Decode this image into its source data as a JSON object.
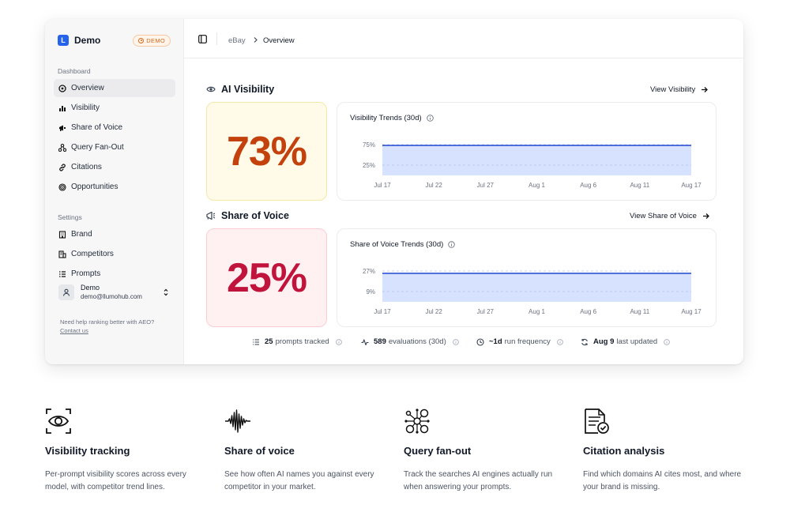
{
  "sidebar": {
    "brand": {
      "logo_letter": "L",
      "name": "Demo",
      "badge": "DEMO"
    },
    "sections": {
      "dashboard": "Dashboard",
      "settings": "Settings"
    },
    "items": [
      {
        "label": "Overview",
        "icon": "overview-icon"
      },
      {
        "label": "Visibility",
        "icon": "bar-chart-icon"
      },
      {
        "label": "Share of Voice",
        "icon": "megaphone-icon"
      },
      {
        "label": "Query Fan-Out",
        "icon": "network-icon"
      },
      {
        "label": "Citations",
        "icon": "link-icon"
      },
      {
        "label": "Opportunities",
        "icon": "target-icon"
      },
      {
        "label": "Brand",
        "icon": "building-icon"
      },
      {
        "label": "Competitors",
        "icon": "buildings-icon"
      },
      {
        "label": "Prompts",
        "icon": "list-icon"
      }
    ],
    "user": {
      "name": "Demo",
      "email": "demo@llumohub.com"
    },
    "help": {
      "text": "Need help ranking better with AEO?",
      "link": "Contact us"
    }
  },
  "header": {
    "breadcrumb_parent": "eBay",
    "breadcrumb_current": "Overview"
  },
  "ai_visibility": {
    "title": "AI Visibility",
    "link": "View Visibility",
    "value": "73%",
    "trend_title": "Visibility Trends (30d)"
  },
  "share_of_voice": {
    "title": "Share of Voice",
    "link": "View Share of Voice",
    "value": "25%",
    "trend_title": "Share of Voice Trends (30d)"
  },
  "chart_data": [
    {
      "type": "area",
      "title": "Visibility Trends (30d)",
      "x": [
        "Jul 17",
        "Jul 22",
        "Jul 27",
        "Aug 1",
        "Aug 6",
        "Aug 11",
        "Aug 17"
      ],
      "y_ticks": [
        "75%",
        "25%"
      ],
      "series": [
        {
          "values": [
            73,
            73,
            73,
            73,
            73,
            73,
            73
          ]
        }
      ],
      "ylim": [
        0,
        100
      ],
      "color": "#2f55d4",
      "fill": "#d6e2ff"
    },
    {
      "type": "area",
      "title": "Share of Voice Trends (30d)",
      "x": [
        "Jul 17",
        "Jul 22",
        "Jul 27",
        "Aug 1",
        "Aug 6",
        "Aug 11",
        "Aug 17"
      ],
      "y_ticks": [
        "27%",
        "9%"
      ],
      "series": [
        {
          "values": [
            25,
            25,
            25,
            25,
            25,
            25,
            25
          ]
        }
      ],
      "ylim": [
        0,
        36
      ],
      "color": "#2f55d4",
      "fill": "#d6e2ff"
    }
  ],
  "stats": [
    {
      "value": "25",
      "label": "prompts tracked",
      "icon": "list-icon"
    },
    {
      "value": "589",
      "label": "evaluations (30d)",
      "icon": "activity-icon"
    },
    {
      "value": "~1d",
      "label": "run frequency",
      "icon": "clock-icon"
    },
    {
      "value": "Aug 9",
      "label": "last updated",
      "icon": "refresh-icon"
    }
  ],
  "features": [
    {
      "title": "Visibility tracking",
      "desc": "Per-prompt visibility scores across every model, with competitor trend lines.",
      "icon": "eye-scan-icon"
    },
    {
      "title": "Share of voice",
      "desc": "See how often AI names you against every competitor in your market.",
      "icon": "waveform-icon"
    },
    {
      "title": "Query fan-out",
      "desc": "Track the searches AI engines actually run when answering your prompts.",
      "icon": "fan-out-network-icon"
    },
    {
      "title": "Citation analysis",
      "desc": "Find which domains AI cites most, and where your brand is missing.",
      "icon": "document-check-icon"
    }
  ]
}
